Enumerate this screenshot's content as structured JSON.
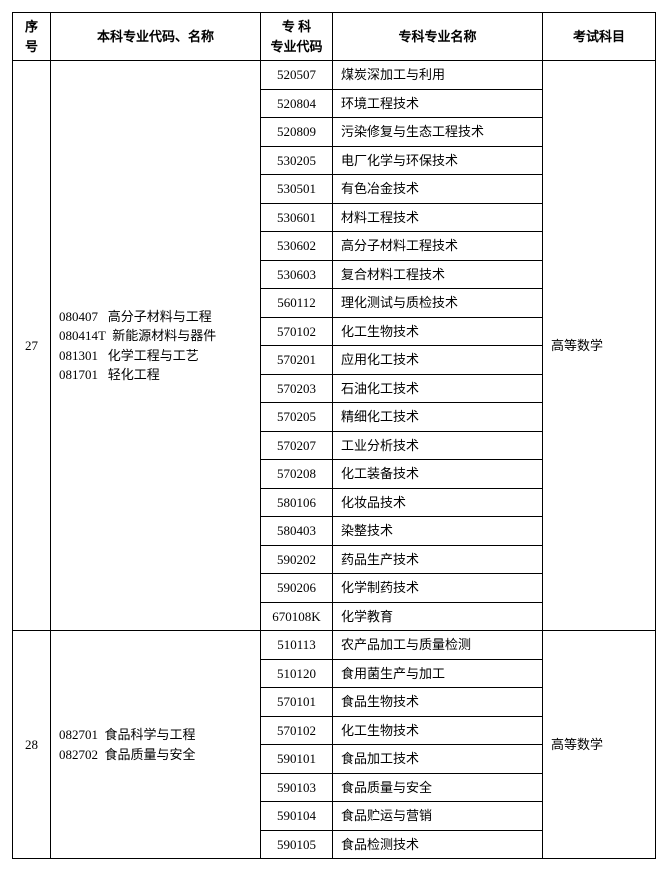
{
  "headers": {
    "xh": "序号",
    "bk": "本科专业代码、名称",
    "zkdm": "专 科\n专业代码",
    "zkmc": "专科专业名称",
    "ks": "考试科目"
  },
  "groups": [
    {
      "xh": "27",
      "majors": [
        {
          "code": "080407",
          "name": "高分子材料与工程"
        },
        {
          "code": "080414T",
          "name": "新能源材料与器件"
        },
        {
          "code": "081301",
          "name": "化学工程与工艺"
        },
        {
          "code": "081701",
          "name": "轻化工程"
        }
      ],
      "exam": "高等数学",
      "rows": [
        {
          "code": "520507",
          "name": "煤炭深加工与利用"
        },
        {
          "code": "520804",
          "name": "环境工程技术"
        },
        {
          "code": "520809",
          "name": "污染修复与生态工程技术"
        },
        {
          "code": "530205",
          "name": "电厂化学与环保技术"
        },
        {
          "code": "530501",
          "name": "有色冶金技术"
        },
        {
          "code": "530601",
          "name": "材料工程技术"
        },
        {
          "code": "530602",
          "name": "高分子材料工程技术"
        },
        {
          "code": "530603",
          "name": "复合材料工程技术"
        },
        {
          "code": "560112",
          "name": "理化测试与质检技术"
        },
        {
          "code": "570102",
          "name": "化工生物技术"
        },
        {
          "code": "570201",
          "name": "应用化工技术"
        },
        {
          "code": "570203",
          "name": "石油化工技术"
        },
        {
          "code": "570205",
          "name": "精细化工技术"
        },
        {
          "code": "570207",
          "name": "工业分析技术"
        },
        {
          "code": "570208",
          "name": "化工装备技术"
        },
        {
          "code": "580106",
          "name": "化妆品技术"
        },
        {
          "code": "580403",
          "name": "染整技术"
        },
        {
          "code": "590202",
          "name": "药品生产技术"
        },
        {
          "code": "590206",
          "name": "化学制药技术"
        },
        {
          "code": "670108K",
          "name": "化学教育"
        }
      ]
    },
    {
      "xh": "28",
      "majors": [
        {
          "code": "082701",
          "name": "食品科学与工程"
        },
        {
          "code": "082702",
          "name": "食品质量与安全"
        }
      ],
      "exam": "高等数学",
      "rows": [
        {
          "code": "510113",
          "name": "农产品加工与质量检测"
        },
        {
          "code": "510120",
          "name": "食用菌生产与加工"
        },
        {
          "code": "570101",
          "name": "食品生物技术"
        },
        {
          "code": "570102",
          "name": "化工生物技术"
        },
        {
          "code": "590101",
          "name": "食品加工技术"
        },
        {
          "code": "590103",
          "name": "食品质量与安全"
        },
        {
          "code": "590104",
          "name": "食品贮运与营销"
        },
        {
          "code": "590105",
          "name": "食品检测技术"
        }
      ]
    }
  ]
}
